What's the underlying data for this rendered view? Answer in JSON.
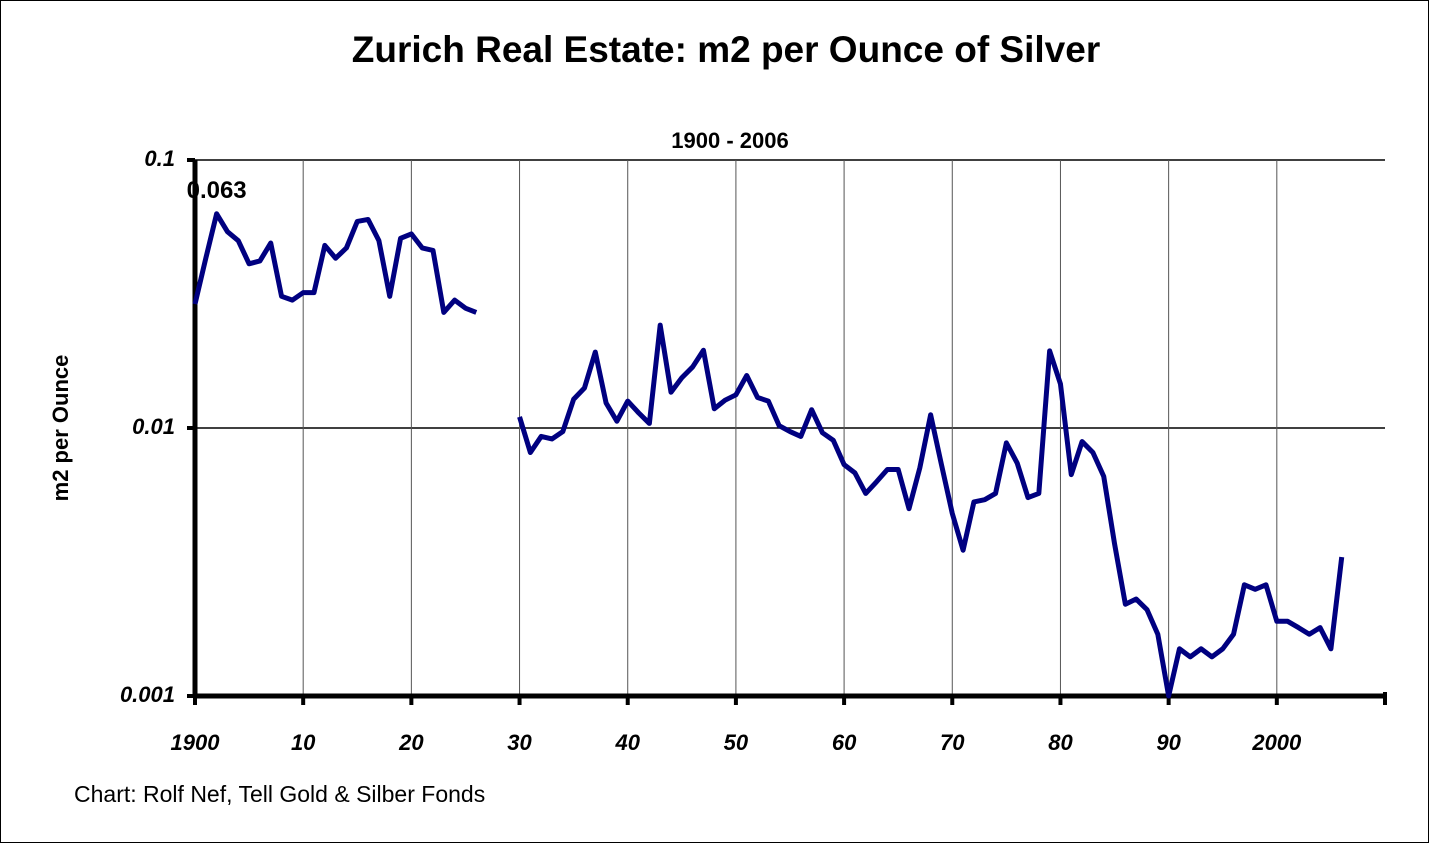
{
  "chart_data": {
    "type": "line",
    "title": "Zurich Real Estate:  m2 per Ounce of Silver",
    "subtitle": "1900 - 2006",
    "y_label": "m2 per Ounce",
    "source": "Chart: Rolf Nef, Tell Gold & Silber Fonds",
    "log_y": true,
    "grid": true,
    "x": [
      1900,
      1901,
      1902,
      1903,
      1904,
      1905,
      1906,
      1907,
      1908,
      1909,
      1910,
      1911,
      1912,
      1913,
      1914,
      1915,
      1916,
      1917,
      1918,
      1919,
      1920,
      1921,
      1922,
      1923,
      1924,
      1925,
      1926,
      1927,
      1928,
      1929,
      1930,
      1931,
      1932,
      1933,
      1934,
      1935,
      1936,
      1937,
      1938,
      1939,
      1940,
      1941,
      1942,
      1943,
      1944,
      1945,
      1946,
      1947,
      1948,
      1949,
      1950,
      1951,
      1952,
      1953,
      1954,
      1955,
      1956,
      1957,
      1958,
      1959,
      1960,
      1961,
      1962,
      1963,
      1964,
      1965,
      1966,
      1967,
      1968,
      1969,
      1970,
      1971,
      1972,
      1973,
      1974,
      1975,
      1976,
      1977,
      1978,
      1979,
      1980,
      1981,
      1982,
      1983,
      1984,
      1985,
      1986,
      1987,
      1988,
      1989,
      1990,
      1991,
      1992,
      1993,
      1994,
      1995,
      1996,
      1997,
      1998,
      1999,
      2000,
      2001,
      2002,
      2003,
      2004,
      2005,
      2006
    ],
    "series": [
      {
        "name": "m2 per Ounce",
        "color": "#000080",
        "values": [
          0.029,
          0.043,
          0.063,
          0.054,
          0.05,
          0.041,
          0.042,
          0.049,
          0.031,
          0.03,
          0.032,
          0.032,
          0.048,
          0.043,
          0.047,
          0.059,
          0.06,
          0.05,
          0.031,
          0.051,
          0.053,
          0.047,
          0.046,
          0.027,
          0.03,
          0.028,
          0.027,
          null,
          null,
          null,
          0.011,
          0.0081,
          0.0093,
          0.0091,
          0.0097,
          0.0128,
          0.0141,
          0.0192,
          0.0124,
          0.0106,
          0.0126,
          0.0114,
          0.0104,
          0.0242,
          0.0136,
          0.0154,
          0.0169,
          0.0195,
          0.0118,
          0.0127,
          0.0133,
          0.0157,
          0.013,
          0.0126,
          0.0102,
          0.0097,
          0.0093,
          0.0117,
          0.0096,
          0.009,
          0.0073,
          0.0068,
          0.0057,
          0.0063,
          0.007,
          0.007,
          0.005,
          0.0071,
          0.0112,
          0.0073,
          0.0048,
          0.0035,
          0.0053,
          0.0054,
          0.0057,
          0.0088,
          0.0074,
          0.0055,
          0.0057,
          0.0194,
          0.0146,
          0.0067,
          0.0089,
          0.0081,
          0.0066,
          0.0037,
          0.0022,
          0.0023,
          0.0021,
          0.0017,
          0.001,
          0.0015,
          0.0014,
          0.0015,
          0.0014,
          0.0015,
          0.0017,
          0.0026,
          0.0025,
          0.0026,
          0.0019,
          0.0019,
          0.0018,
          0.0017,
          0.0018,
          0.0015,
          0.0033
        ]
      }
    ],
    "annotations": [
      {
        "label": "0.063",
        "x": 1902,
        "y": 0.063
      }
    ],
    "xlim": [
      1900,
      2010
    ],
    "xticks": [
      1900,
      {
        "value": 1910,
        "label": "10"
      },
      {
        "value": 1920,
        "label": "20"
      },
      {
        "value": 1930,
        "label": "30"
      },
      {
        "value": 1940,
        "label": "40"
      },
      {
        "value": 1950,
        "label": "50"
      },
      {
        "value": 1960,
        "label": "60"
      },
      {
        "value": 1970,
        "label": "70"
      },
      {
        "value": 1980,
        "label": "80"
      },
      {
        "value": 1990,
        "label": "90"
      },
      2000
    ],
    "ylim": [
      0.001,
      0.1
    ],
    "yticks": [
      0.1,
      0.01,
      0.001
    ]
  }
}
